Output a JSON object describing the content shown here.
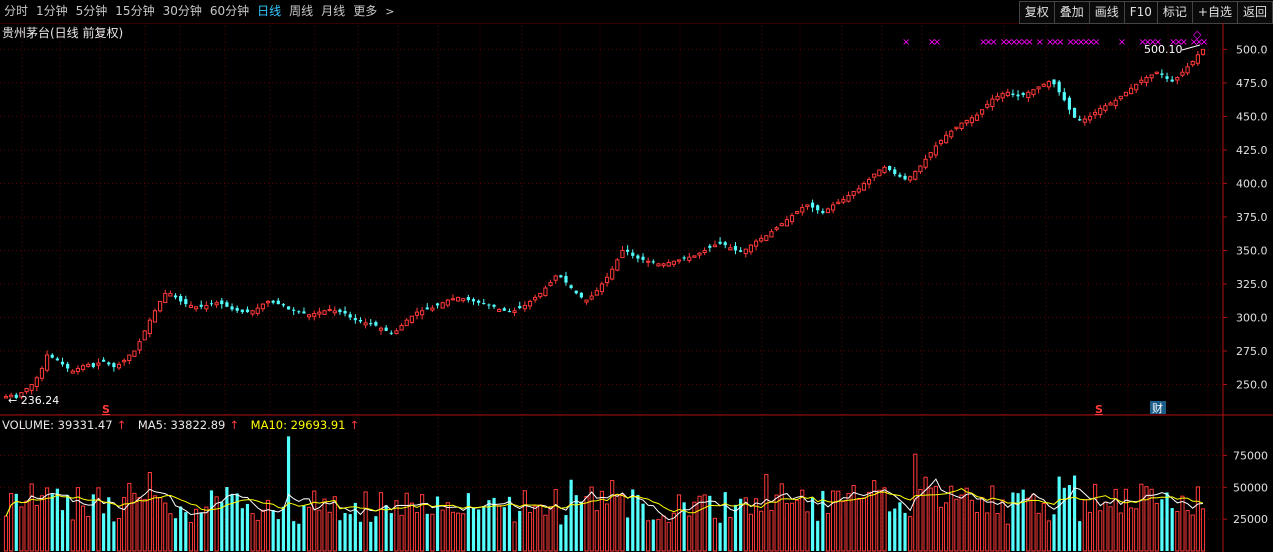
{
  "toolbar": {
    "periods": [
      "分时",
      "1分钟",
      "5分钟",
      "15分钟",
      "30分钟",
      "60分钟",
      "日线",
      "周线",
      "月线",
      "更多"
    ],
    "active_period": "日线",
    "more_chevron": ">",
    "right_buttons": [
      "复权",
      "叠加",
      "画线",
      "F10",
      "标记",
      "+自选",
      "返回"
    ]
  },
  "title": "贵州茅台(日线 前复权)",
  "price_axis": {
    "ticks": [
      "500.0",
      "475.0",
      "450.0",
      "425.0",
      "400.0",
      "375.0",
      "350.0",
      "325.0",
      "300.0",
      "275.0",
      "250.0"
    ]
  },
  "volume_axis": {
    "ticks": [
      "75000",
      "50000",
      "25000"
    ]
  },
  "annotations": {
    "high_label": "500.10",
    "low_label": "← 236.24",
    "cai_badge": "财",
    "s_marker": "S",
    "diamond": "◇"
  },
  "volume_legend": {
    "volume": "VOLUME: 39331.47",
    "ma5": "MA5: 33822.89",
    "ma10": "MA10: 29693.91",
    "arrow": "↑"
  },
  "colors": {
    "up": "#ff3a3a",
    "down": "#54ffff",
    "grid": "#5a0000",
    "axis": "#b01010",
    "ma5": "#ffffff",
    "ma10": "#ffff00",
    "signal": "#ff00ff",
    "active": "#35c9ff"
  },
  "chart_data": {
    "type": "candlestick",
    "title": "贵州茅台(日线 前复权)",
    "price_ylim": [
      228,
      510
    ],
    "volume_ylim": [
      0,
      95000
    ],
    "close": [
      241,
      242,
      240,
      244,
      247,
      250,
      255,
      262,
      272,
      270,
      268,
      265,
      262,
      260,
      262,
      264,
      265,
      263,
      266,
      267,
      265,
      263,
      265,
      268,
      272,
      275,
      282,
      290,
      298,
      305,
      312,
      318,
      318,
      315,
      312,
      310,
      309,
      308,
      308,
      309,
      310,
      311,
      310,
      308,
      306,
      305,
      304,
      304,
      305,
      307,
      310,
      312,
      311,
      310,
      309,
      306,
      305,
      304,
      303,
      302,
      303,
      304,
      305,
      306,
      305,
      304,
      303,
      300,
      298,
      297,
      296,
      295,
      294,
      292,
      290,
      288,
      290,
      294,
      298,
      301,
      304,
      305,
      306,
      307,
      309,
      311,
      313,
      314,
      315,
      314,
      313,
      312,
      311,
      310,
      309,
      308,
      306,
      305,
      304,
      305,
      307,
      309,
      312,
      315,
      318,
      322,
      326,
      331,
      330,
      326,
      322,
      318,
      315,
      313,
      316,
      320,
      325,
      330,
      336,
      343,
      350,
      349,
      346,
      344,
      343,
      342,
      341,
      340,
      340,
      341,
      342,
      343,
      344,
      345,
      346,
      348,
      350,
      352,
      354,
      355,
      354,
      352,
      350,
      349,
      351,
      354,
      357,
      359,
      361,
      364,
      367,
      370,
      373,
      376,
      379,
      382,
      384,
      382,
      380,
      378,
      381,
      384,
      386,
      388,
      391,
      394,
      396,
      400,
      403,
      407,
      410,
      412,
      410,
      407,
      405,
      403,
      405,
      409,
      413,
      418,
      423,
      428,
      432,
      436,
      439,
      442,
      445,
      447,
      449,
      451,
      455,
      459,
      463,
      465,
      467,
      468,
      466,
      465,
      466,
      468,
      470,
      472,
      474,
      476,
      474,
      468,
      462,
      455,
      449,
      447,
      448,
      450,
      453,
      456,
      458,
      460,
      462,
      465,
      468,
      471,
      474,
      477,
      479,
      481,
      483,
      481,
      478,
      476,
      479,
      483,
      487,
      491,
      496,
      500
    ]
  }
}
